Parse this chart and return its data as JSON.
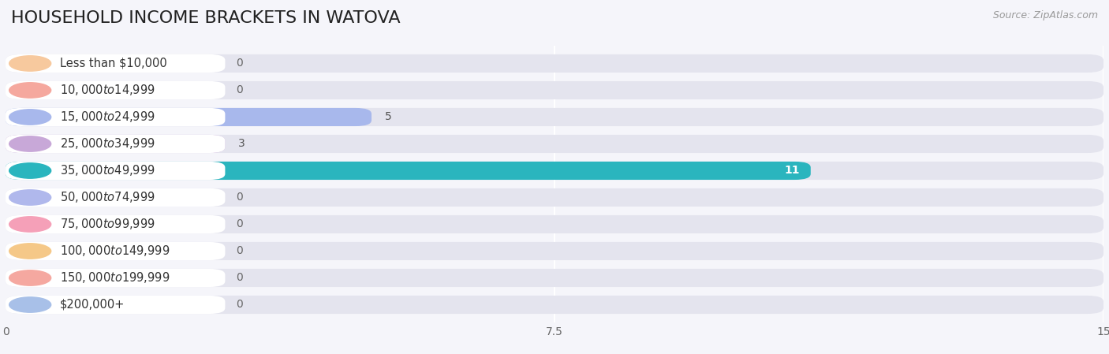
{
  "title": "HOUSEHOLD INCOME BRACKETS IN WATOVA",
  "source": "Source: ZipAtlas.com",
  "categories": [
    "Less than $10,000",
    "$10,000 to $14,999",
    "$15,000 to $24,999",
    "$25,000 to $34,999",
    "$35,000 to $49,999",
    "$50,000 to $74,999",
    "$75,000 to $99,999",
    "$100,000 to $149,999",
    "$150,000 to $199,999",
    "$200,000+"
  ],
  "values": [
    0,
    0,
    5,
    3,
    11,
    0,
    0,
    0,
    0,
    0
  ],
  "bar_colors": [
    "#f7c99e",
    "#f5a89e",
    "#a8b8ec",
    "#c8a8d8",
    "#2ab5be",
    "#b0b8ec",
    "#f5a0b8",
    "#f5c888",
    "#f5a8a0",
    "#a8c0e8"
  ],
  "xlim": [
    0,
    15
  ],
  "xticks": [
    0,
    7.5,
    15
  ],
  "background_color": "#f5f5fa",
  "bar_bg_color": "#e4e4ee",
  "title_fontsize": 16,
  "label_fontsize": 10.5,
  "value_fontsize": 10
}
